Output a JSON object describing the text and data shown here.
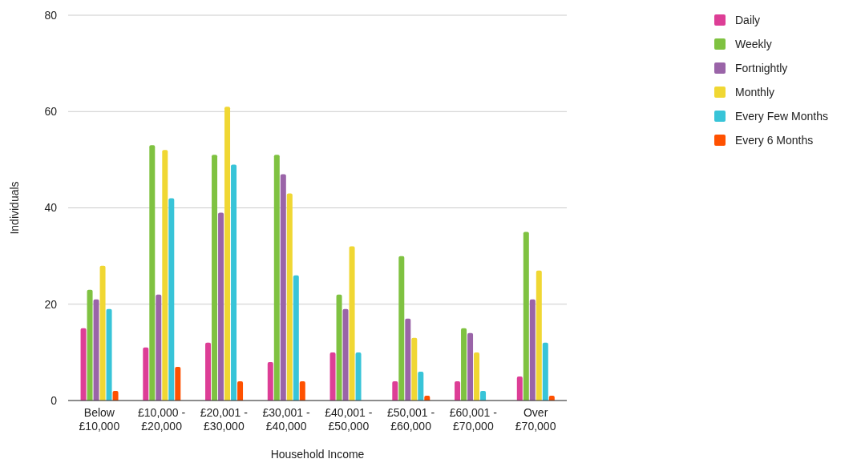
{
  "chart_data": {
    "type": "bar",
    "xlabel": "Household Income",
    "ylabel": "Individuals",
    "categories": [
      "Below £10,000",
      "£10,000 - £20,000",
      "£20,001 - £30,000",
      "£30,001 - £40,000",
      "£40,001 - £50,000",
      "£50,001 - £60,000",
      "£60,001 - £70,000",
      "Over £70,000"
    ],
    "series": [
      {
        "name": "Daily",
        "color": "#dd3e96",
        "values": [
          15,
          11,
          12,
          8,
          10,
          4,
          4,
          5
        ]
      },
      {
        "name": "Weekly",
        "color": "#7fc241",
        "values": [
          23,
          53,
          51,
          51,
          22,
          30,
          15,
          35
        ]
      },
      {
        "name": "Fortnightly",
        "color": "#9a64a8",
        "values": [
          21,
          22,
          39,
          47,
          19,
          17,
          14,
          21
        ]
      },
      {
        "name": "Monthly",
        "color": "#f0d733",
        "values": [
          28,
          52,
          61,
          43,
          32,
          13,
          10,
          27
        ]
      },
      {
        "name": "Every Few Months",
        "color": "#38c4d8",
        "values": [
          19,
          42,
          49,
          26,
          10,
          6,
          2,
          12
        ]
      },
      {
        "name": "Every 6 Months",
        "color": "#ff5100",
        "values": [
          2,
          7,
          4,
          4,
          0,
          1,
          0,
          1
        ]
      }
    ],
    "ylim": [
      0,
      80
    ],
    "yticks": [
      0,
      20,
      40,
      60,
      80
    ],
    "grid": "y",
    "legend": "top right"
  }
}
